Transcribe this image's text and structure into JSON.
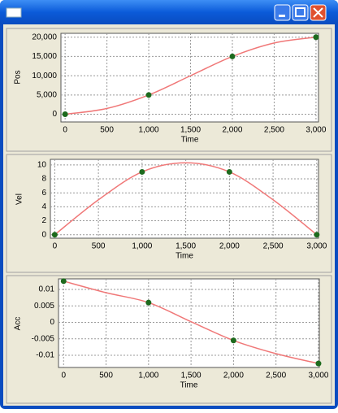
{
  "chart_data": [
    {
      "type": "line",
      "xlabel": "Time",
      "ylabel": "Pos",
      "xlim": [
        -50,
        3030
      ],
      "ylim": [
        -2000,
        21000
      ],
      "grid": true,
      "xticks": [
        0,
        500,
        {
          "value": 1000,
          "label": "1,000"
        },
        {
          "value": 1500,
          "label": "1,500"
        },
        {
          "value": 2000,
          "label": "2,000"
        },
        {
          "value": 2500,
          "label": "2,500"
        },
        {
          "value": 3000,
          "label": "3,000"
        }
      ],
      "yticks": [
        0,
        {
          "value": 5000,
          "label": "5,000"
        },
        {
          "value": 10000,
          "label": "10,000"
        },
        {
          "value": 15000,
          "label": "15,000"
        },
        {
          "value": 20000,
          "label": "20,000"
        }
      ],
      "series": [
        {
          "mode": "line",
          "color": "#f07878",
          "x": [
            0,
            500,
            1000,
            1500,
            2000,
            2500,
            3000
          ],
          "values": [
            0,
            1500,
            5000,
            10000,
            15000,
            18500,
            20000
          ]
        },
        {
          "mode": "markers",
          "color": "#1d6a1d",
          "x": [
            0,
            1000,
            2000,
            3000
          ],
          "values": [
            0,
            5000,
            15000,
            20000
          ]
        }
      ]
    },
    {
      "type": "line",
      "xlabel": "Time",
      "ylabel": "Vel",
      "xlim": [
        -50,
        3020
      ],
      "ylim": [
        -0.5,
        10.8
      ],
      "grid": true,
      "xticks": [
        0,
        500,
        {
          "value": 1000,
          "label": "1,000"
        },
        {
          "value": 1500,
          "label": "1,500"
        },
        {
          "value": 2000,
          "label": "2,000"
        },
        {
          "value": 2500,
          "label": "2,500"
        },
        {
          "value": 3000,
          "label": "3,000"
        }
      ],
      "yticks": [
        0,
        2,
        4,
        6,
        8,
        10
      ],
      "series": [
        {
          "mode": "line",
          "color": "#f07878",
          "x": [
            0,
            500,
            1000,
            1500,
            2000,
            2500,
            3000
          ],
          "values": [
            0,
            5,
            9,
            10.3,
            9,
            5,
            0
          ]
        },
        {
          "mode": "markers",
          "color": "#1d6a1d",
          "x": [
            0,
            1000,
            2000,
            3000
          ],
          "values": [
            0,
            9,
            9,
            0
          ]
        }
      ]
    },
    {
      "type": "line",
      "xlabel": "Time",
      "ylabel": "Acc",
      "xlim": [
        -60,
        3010
      ],
      "ylim": [
        -0.0137,
        0.0132
      ],
      "grid": true,
      "xticks": [
        0,
        500,
        {
          "value": 1000,
          "label": "1,000"
        },
        {
          "value": 1500,
          "label": "1,500"
        },
        {
          "value": 2000,
          "label": "2,000"
        },
        {
          "value": 2500,
          "label": "2,500"
        },
        {
          "value": 3000,
          "label": "3,000"
        }
      ],
      "yticks": [
        -0.01,
        -0.005,
        0,
        0.005,
        0.01
      ],
      "series": [
        {
          "mode": "line",
          "color": "#f07878",
          "x": [
            0,
            500,
            1000,
            1500,
            2000,
            2500,
            3000
          ],
          "values": [
            0.0125,
            0.009,
            0.006,
            0.0002,
            -0.0055,
            -0.0095,
            -0.0125
          ]
        },
        {
          "mode": "markers",
          "color": "#1d6a1d",
          "x": [
            0,
            1000,
            2000,
            3000
          ],
          "values": [
            0.0125,
            0.006,
            -0.0055,
            -0.0125
          ]
        }
      ]
    }
  ]
}
